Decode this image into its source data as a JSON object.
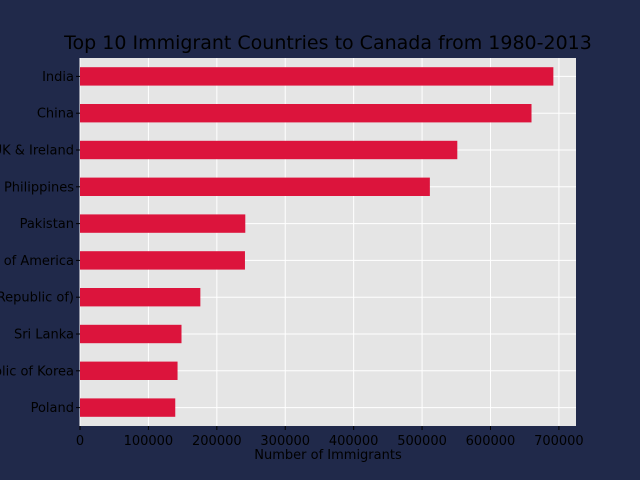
{
  "chart_data": {
    "type": "bar",
    "orientation": "horizontal",
    "title": "Top 10 Immigrant Countries to Canada from 1980-2013",
    "xlabel": "Number of Immigrants",
    "ylabel": "",
    "categories": [
      "India",
      "China",
      "United Kingdom of Great Britain and Northern Ireland",
      "Philippines",
      "Pakistan",
      "United States of America",
      "Iran (Islamic Republic of)",
      "Sri Lanka",
      "Republic of Korea",
      "Poland"
    ],
    "category_labels_shown": [
      "India",
      "China",
      "UK & Ireland",
      "Philippines",
      "Pakistan",
      "s of America",
      "Republic of)",
      "Sri Lanka",
      "blic of Korea",
      "Poland"
    ],
    "values": [
      691904,
      659962,
      551500,
      511391,
      241600,
      241122,
      175923,
      148358,
      142581,
      139241
    ],
    "xlim": [
      0,
      725000
    ],
    "xticks": [
      0,
      100000,
      200000,
      300000,
      400000,
      500000,
      600000,
      700000
    ],
    "xtick_labels": [
      "0",
      "100000",
      "200000",
      "300000",
      "400000",
      "500000",
      "600000",
      "700000"
    ],
    "bar_color": "#dc143c",
    "plot_background": "#e5e5e5",
    "figure_background": "#20294a",
    "grid": true,
    "legend": "none"
  }
}
